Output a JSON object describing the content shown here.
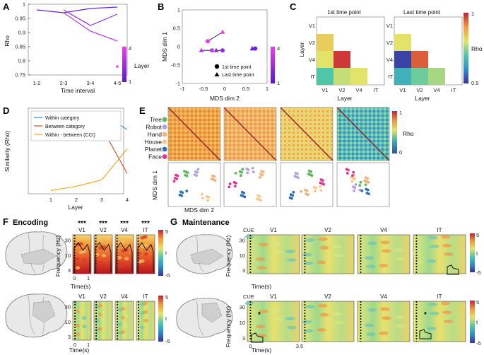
{
  "panels": {
    "A": {
      "label": "A",
      "ylabel": "Rho",
      "xlabel": "Time interval",
      "colorbar_label": "Layer",
      "colorbar_top": "4",
      "colorbar_bottom": "1"
    },
    "B": {
      "label": "B",
      "ylabel": "MDS dim 1",
      "xlabel": "MDS dim 2",
      "legend_first": "1st time point",
      "legend_last": "Last time point",
      "colorbar_top": "4",
      "colorbar_bottom": "1"
    },
    "C": {
      "label": "C",
      "title_first": "1st time point",
      "title_last": "Last time point",
      "ylabel": "Layer",
      "xlabel": "Layer",
      "colorbar_label": "Rho",
      "colorbar_top": "1",
      "colorbar_bottom": "0.5"
    },
    "D": {
      "label": "D",
      "ylabel": "Similarity (Rho)",
      "xlabel": "Layer",
      "legend": [
        "Within category",
        "Between category",
        "Within - between (CCI)"
      ]
    },
    "E": {
      "label": "E",
      "categories": [
        "Tree",
        "Robot",
        "Hand",
        "House",
        "Planet",
        "Face"
      ],
      "category_colors": [
        "#5cb85c",
        "#b3a2d6",
        "#f0b27a",
        "#f6c98a",
        "#2f6db5",
        "#e2338f"
      ],
      "colorbar_label": "Rho",
      "colorbar_top": "1",
      "colorbar_bottom": "0",
      "ylabel": "MDS dim 1",
      "xlabel": "MDS dim 2"
    },
    "F": {
      "label": "F",
      "title": "Encoding",
      "layers": [
        "V1",
        "V2",
        "V4",
        "IT"
      ],
      "sig": "***",
      "ylabel": "Frequency (Hz)",
      "xlabel": "Time(s)",
      "yticks": [
        "3",
        "10",
        "30"
      ],
      "xticks": [
        "0",
        "1"
      ],
      "colorbar_top": "5",
      "colorbar_mid": "t",
      "colorbar_bottom": "-5"
    },
    "G": {
      "label": "G",
      "title": "Maintenance",
      "cue": "CUE",
      "layers": [
        "V1",
        "V2",
        "V4",
        "IT"
      ],
      "sig": "*",
      "ylabel": "Frequency (Hz)",
      "xlabel": "Time(s)",
      "yticks": [
        "3",
        "10",
        "30"
      ],
      "xticks": [
        "0",
        "3.5"
      ],
      "colorbar_top": "5",
      "colorbar_mid": "t",
      "colorbar_bottom": "-5"
    }
  },
  "chart_data": [
    {
      "panel": "A",
      "type": "line",
      "xlabel": "Time interval",
      "ylabel": "Rho",
      "categories": [
        "1-2",
        "2-3",
        "3-4",
        "4-5"
      ],
      "ylim": [
        0.75,
        1.0
      ],
      "yticks": [
        "0.75",
        "0.8",
        "0.85",
        "0.9",
        "0.95",
        "1"
      ],
      "series": [
        {
          "name": "Layer 1",
          "color": "#6a1fe0",
          "values": [
            0.98,
            0.97,
            0.985,
            0.99
          ]
        },
        {
          "name": "Layer 2",
          "color": "#8d2be8",
          "values": [
            null,
            0.98,
            0.925,
            0.965
          ]
        },
        {
          "name": "Layer 3",
          "color": "#b63ced",
          "values": [
            null,
            0.97,
            0.905,
            0.87
          ]
        },
        {
          "name": "Layer 4",
          "color": "#ee3cf0",
          "values": [
            null,
            null,
            null,
            0.78
          ]
        }
      ]
    },
    {
      "panel": "B",
      "type": "scatter",
      "xlabel": "MDS dim 2",
      "ylabel": "MDS dim 1",
      "xlim": [
        -1,
        1
      ],
      "ylim": [
        -1,
        1
      ],
      "xticks": [
        "-1",
        "-0.5",
        "0",
        "0.5",
        "1"
      ],
      "yticks": [
        "-1",
        "-0.5",
        "0",
        "0.5",
        "1"
      ],
      "points": [
        {
          "layer": 1,
          "first": [
            0.72,
            -0.05
          ],
          "last": [
            0.65,
            -0.05
          ],
          "color": "#6a1fe0"
        },
        {
          "layer": 2,
          "first": [
            -0.05,
            -0.1
          ],
          "last": [
            -0.2,
            -0.1
          ],
          "color": "#8d2be8"
        },
        {
          "layer": 3,
          "first": [
            -0.3,
            -0.1
          ],
          "last": [
            -0.55,
            -0.1
          ],
          "color": "#b63ced"
        },
        {
          "layer": 4,
          "first": [
            -0.4,
            0.15
          ],
          "last": [
            -0.05,
            0.4
          ],
          "color": "#ee3cf0"
        }
      ]
    },
    {
      "panel": "C",
      "type": "heatmap",
      "rows": [
        "V1",
        "V2",
        "V4",
        "IT"
      ],
      "cols": [
        "V1",
        "V2",
        "V4",
        "IT"
      ],
      "first": [
        [
          null,
          null,
          null,
          null
        ],
        [
          0.83,
          null,
          null,
          null
        ],
        [
          0.8,
          0.98,
          null,
          null
        ],
        [
          0.7,
          0.78,
          0.8,
          null
        ]
      ],
      "last": [
        [
          null,
          null,
          null,
          null
        ],
        [
          0.8,
          null,
          null,
          null
        ],
        [
          0.52,
          0.95,
          null,
          null
        ],
        [
          0.66,
          0.72,
          0.76,
          null
        ]
      ]
    },
    {
      "panel": "D",
      "type": "line",
      "xlabel": "Layer",
      "ylabel": "Similarity (Rho)",
      "x": [
        1,
        2,
        3,
        4
      ],
      "ylim": [
        0,
        0.8
      ],
      "series": [
        {
          "name": "Within category",
          "color": "#3d8fd1",
          "values": [
            0.7,
            0.66,
            0.75,
            0.6
          ]
        },
        {
          "name": "Between category",
          "color": "#d9531e",
          "values": [
            0.68,
            0.58,
            0.62,
            0.19
          ]
        },
        {
          "name": "Within - between (CCI)",
          "color": "#eda82b",
          "values": [
            0.03,
            0.07,
            0.13,
            0.42
          ]
        }
      ]
    }
  ]
}
